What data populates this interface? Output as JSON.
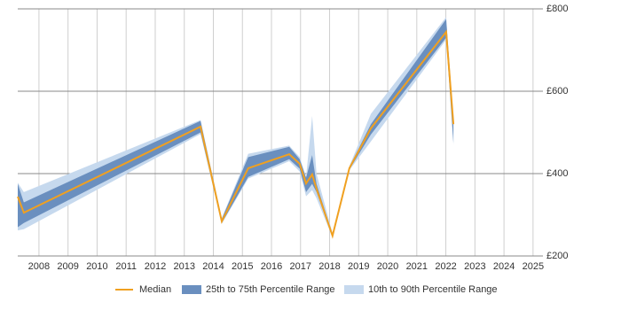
{
  "chart_data": {
    "type": "line",
    "x": [
      2007.27,
      2007.48,
      2013.56,
      2014.29,
      2015.2,
      2016.61,
      2016.97,
      2017.19,
      2017.4,
      2017.55,
      2018.1,
      2018.68,
      2019.42,
      2022.01,
      2022.26
    ],
    "series": [
      {
        "name": "Median",
        "color": "#f0a020",
        "values": [
          344,
          305,
          514,
          284,
          413,
          447,
          424,
          376,
          398,
          363,
          249,
          413,
          510,
          744,
          520
        ]
      },
      {
        "name": "25th to 75th Percentile Range",
        "color": "#6a8fbf",
        "lower": [
          270,
          280,
          500,
          280,
          392,
          435,
          412,
          355,
          375,
          355,
          247,
          410,
          495,
          730,
          475
        ],
        "upper": [
          375,
          330,
          528,
          290,
          440,
          465,
          435,
          390,
          445,
          375,
          252,
          416,
          520,
          775,
          530
        ]
      },
      {
        "name": "10th to 90th Percentile Range",
        "color": "#c6d9ee",
        "lower": [
          262,
          265,
          496,
          278,
          388,
          430,
          405,
          345,
          360,
          340,
          245,
          408,
          478,
          725,
          470
        ],
        "upper": [
          378,
          355,
          530,
          292,
          448,
          468,
          440,
          392,
          540,
          400,
          255,
          418,
          545,
          780,
          535
        ]
      }
    ],
    "xlim": [
      2007.27,
      2025.34
    ],
    "xticks": [
      2008,
      2009,
      2010,
      2011,
      2012,
      2013,
      2014,
      2015,
      2016,
      2017,
      2018,
      2019,
      2020,
      2021,
      2022,
      2023,
      2024,
      2025
    ],
    "ylim": [
      200,
      800
    ],
    "yticks": [
      {
        "value": 200,
        "label": "£200"
      },
      {
        "value": 400,
        "label": "£400"
      },
      {
        "value": 600,
        "label": "£600"
      },
      {
        "value": 800,
        "label": "£800"
      }
    ],
    "grid": true
  }
}
